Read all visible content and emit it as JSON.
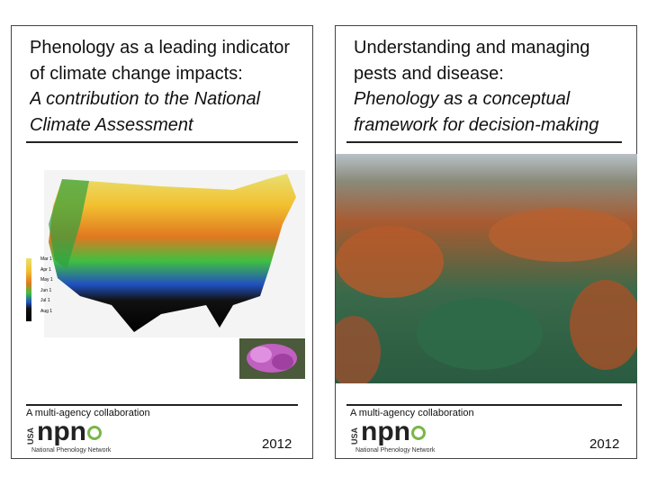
{
  "covers": [
    {
      "title": "Phenology as a leading indicator of climate change impacts:",
      "subtitle": "A contribution to the National Climate Assessment",
      "map_legend": [
        "Mar 1",
        "Apr 1",
        "May 1",
        "Jun 1",
        "Jul 1",
        "Aug 1"
      ],
      "footer": "A multi-agency collaboration",
      "logo": {
        "country": "USA",
        "acronym": "npn",
        "name": "National Phenology Network"
      },
      "year": "2012"
    },
    {
      "title": "Understanding and managing pests and disease:",
      "subtitle": "Phenology as a conceptual framework for decision-making",
      "footer": "A multi-agency collaboration",
      "logo": {
        "country": "USA",
        "acronym": "npn",
        "name": "National Phenology Network"
      },
      "year": "2012"
    }
  ]
}
